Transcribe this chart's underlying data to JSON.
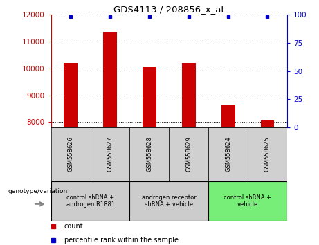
{
  "title": "GDS4113 / 208856_x_at",
  "samples": [
    "GSM558626",
    "GSM558627",
    "GSM558628",
    "GSM558629",
    "GSM558624",
    "GSM558625"
  ],
  "counts": [
    10200,
    11350,
    10050,
    10200,
    8650,
    8050
  ],
  "percentiles": [
    99,
    99,
    99,
    99,
    99,
    99
  ],
  "ylim_left": [
    7800,
    12000
  ],
  "ylim_right": [
    0,
    100
  ],
  "yticks_left": [
    8000,
    9000,
    10000,
    11000,
    12000
  ],
  "yticks_right": [
    0,
    25,
    50,
    75,
    100
  ],
  "bar_color": "#cc0000",
  "percentile_color": "#0000cc",
  "groups": [
    {
      "label": "control shRNA +\nandrogen R1881",
      "start": 0,
      "end": 1,
      "color": "#cccccc"
    },
    {
      "label": "androgen receptor\nshRNA + vehicle",
      "start": 2,
      "end": 3,
      "color": "#cccccc"
    },
    {
      "label": "control shRNA +\nvehicle",
      "start": 4,
      "end": 5,
      "color": "#77ee77"
    }
  ],
  "genotype_label": "genotype/variation",
  "legend_count_label": "count",
  "legend_percentile_label": "percentile rank within the sample",
  "bar_width": 0.35
}
